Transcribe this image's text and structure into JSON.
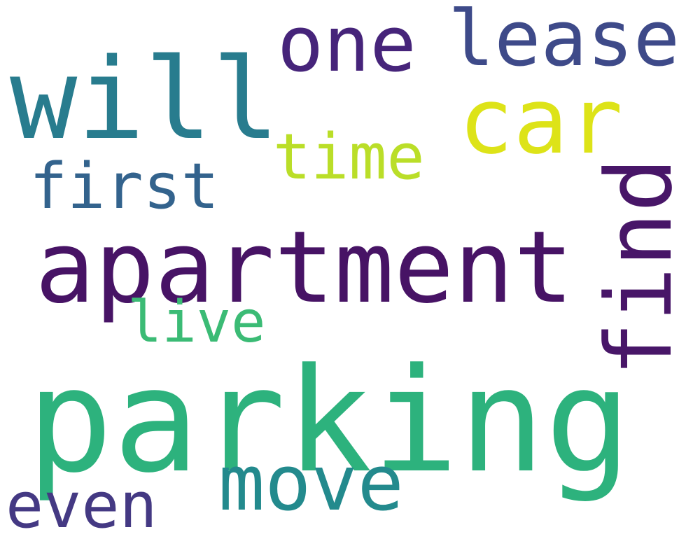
{
  "words": {
    "parking": {
      "text": "parking",
      "color": "#2db27d"
    },
    "apartment": {
      "text": "apartment",
      "color": "#471365"
    },
    "will": {
      "text": "will",
      "color": "#287c8e"
    },
    "one": {
      "text": "one",
      "color": "#46247a"
    },
    "lease": {
      "text": "lease",
      "color": "#3e4a89"
    },
    "car": {
      "text": "car",
      "color": "#dde318"
    },
    "time": {
      "text": "time",
      "color": "#bade28"
    },
    "first": {
      "text": "first",
      "color": "#33638d"
    },
    "find": {
      "text": "find",
      "color": "#481668"
    },
    "live": {
      "text": "live",
      "color": "#3bbb75"
    },
    "move": {
      "text": "move",
      "color": "#238a8d"
    },
    "even": {
      "text": "even",
      "color": "#443983"
    }
  }
}
